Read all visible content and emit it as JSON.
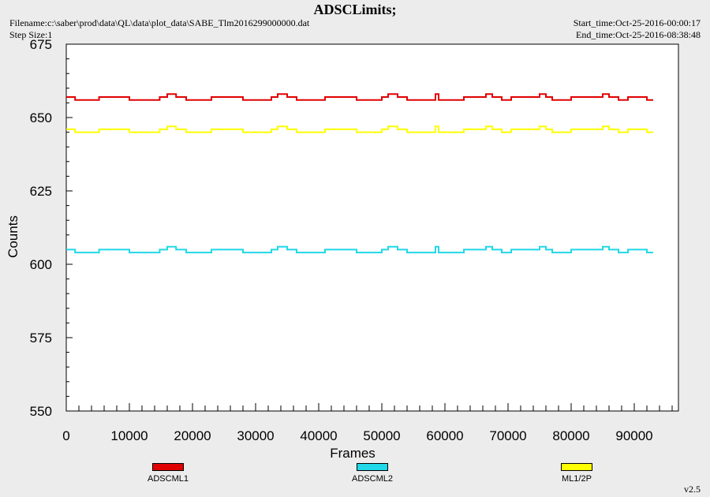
{
  "header": {
    "title": "ADSCLimits;",
    "filename": "Filename:c:\\saber\\prod\\data\\QL\\data\\plot_data\\SABE_Tlm2016299000000.dat",
    "step_size": "Step Size:1",
    "start_time": "Start_time:Oct-25-2016-00:00:17",
    "end_time": "End_time:Oct-25-2016-08:38:48",
    "version": "v2.5"
  },
  "chart_data": {
    "type": "line",
    "title": "ADSCLimits;",
    "xlabel": "Frames",
    "ylabel": "Counts",
    "xlim": [
      0,
      97000
    ],
    "ylim": [
      550,
      675
    ],
    "x_ticks": [
      0,
      10000,
      20000,
      30000,
      40000,
      50000,
      60000,
      70000,
      80000,
      90000
    ],
    "y_ticks": [
      550,
      575,
      600,
      625,
      650,
      675
    ],
    "grid": false,
    "legend_position": "bottom",
    "series": [
      {
        "name": "ADSCML1",
        "color": "#e00000",
        "x": [
          0,
          1400,
          1400,
          5200,
          5200,
          10000,
          10000,
          14800,
          14800,
          16000,
          16000,
          17400,
          17400,
          19000,
          19000,
          23000,
          23000,
          28000,
          28000,
          32500,
          32500,
          33500,
          33500,
          35000,
          35000,
          36500,
          36500,
          41000,
          41000,
          46000,
          46000,
          50000,
          50000,
          51000,
          51000,
          52500,
          52500,
          54000,
          54000,
          58500,
          58500,
          59000,
          59000,
          63000,
          63000,
          66500,
          66500,
          67500,
          67500,
          69000,
          69000,
          70500,
          70500,
          75000,
          75000,
          76000,
          76000,
          77000,
          77000,
          80000,
          80000,
          85000,
          85000,
          86000,
          86000,
          87500,
          87500,
          89000,
          89000,
          92000,
          92000,
          93000
        ],
        "y": [
          657,
          657,
          656,
          656,
          657,
          657,
          656,
          656,
          657,
          657,
          658,
          658,
          657,
          657,
          656,
          656,
          657,
          657,
          656,
          656,
          657,
          657,
          658,
          658,
          657,
          657,
          656,
          656,
          657,
          657,
          656,
          656,
          657,
          657,
          658,
          658,
          657,
          657,
          656,
          656,
          658,
          658,
          656,
          656,
          657,
          657,
          658,
          658,
          657,
          657,
          656,
          656,
          657,
          657,
          658,
          658,
          657,
          657,
          656,
          656,
          657,
          657,
          658,
          658,
          657,
          657,
          656,
          656,
          657,
          657,
          656,
          656
        ]
      },
      {
        "name": "ADSCML2",
        "color": "#20d8e8",
        "x": [
          0,
          1400,
          1400,
          5200,
          5200,
          10000,
          10000,
          14800,
          14800,
          16000,
          16000,
          17400,
          17400,
          19000,
          19000,
          23000,
          23000,
          28000,
          28000,
          32500,
          32500,
          33500,
          33500,
          35000,
          35000,
          36500,
          36500,
          41000,
          41000,
          46000,
          46000,
          50000,
          50000,
          51000,
          51000,
          52500,
          52500,
          54000,
          54000,
          58500,
          58500,
          59000,
          59000,
          63000,
          63000,
          66500,
          66500,
          67500,
          67500,
          69000,
          69000,
          70500,
          70500,
          75000,
          75000,
          76000,
          76000,
          77000,
          77000,
          80000,
          80000,
          85000,
          85000,
          86000,
          86000,
          87500,
          87500,
          89000,
          89000,
          92000,
          92000,
          93000
        ],
        "y": [
          605,
          605,
          604,
          604,
          605,
          605,
          604,
          604,
          605,
          605,
          606,
          606,
          605,
          605,
          604,
          604,
          605,
          605,
          604,
          604,
          605,
          605,
          606,
          606,
          605,
          605,
          604,
          604,
          605,
          605,
          604,
          604,
          605,
          605,
          606,
          606,
          605,
          605,
          604,
          604,
          606,
          606,
          604,
          604,
          605,
          605,
          606,
          606,
          605,
          605,
          604,
          604,
          605,
          605,
          606,
          606,
          605,
          605,
          604,
          604,
          605,
          605,
          606,
          606,
          605,
          605,
          604,
          604,
          605,
          605,
          604,
          604
        ]
      },
      {
        "name": "ML1/2P",
        "color": "#ffff00",
        "x": [
          0,
          1400,
          1400,
          5200,
          5200,
          10000,
          10000,
          14800,
          14800,
          16000,
          16000,
          17400,
          17400,
          19000,
          19000,
          23000,
          23000,
          28000,
          28000,
          32500,
          32500,
          33500,
          33500,
          35000,
          35000,
          36500,
          36500,
          41000,
          41000,
          46000,
          46000,
          50000,
          50000,
          51000,
          51000,
          52500,
          52500,
          54000,
          54000,
          58500,
          58500,
          59000,
          59000,
          63000,
          63000,
          66500,
          66500,
          67500,
          67500,
          69000,
          69000,
          70500,
          70500,
          75000,
          75000,
          76000,
          76000,
          77000,
          77000,
          80000,
          80000,
          85000,
          85000,
          86000,
          86000,
          87500,
          87500,
          89000,
          89000,
          92000,
          92000,
          93000
        ],
        "y": [
          646,
          646,
          645,
          645,
          646,
          646,
          645,
          645,
          646,
          646,
          647,
          647,
          646,
          646,
          645,
          645,
          646,
          646,
          645,
          645,
          646,
          646,
          647,
          647,
          646,
          646,
          645,
          645,
          646,
          646,
          645,
          645,
          646,
          646,
          647,
          647,
          646,
          646,
          645,
          645,
          647,
          647,
          645,
          645,
          646,
          646,
          647,
          647,
          646,
          646,
          645,
          645,
          646,
          646,
          647,
          647,
          646,
          646,
          645,
          645,
          646,
          646,
          647,
          647,
          646,
          646,
          645,
          645,
          646,
          646,
          645,
          645
        ]
      }
    ]
  }
}
